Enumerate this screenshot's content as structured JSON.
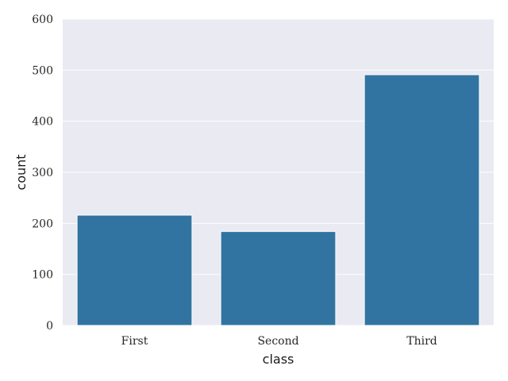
{
  "chart_data": {
    "type": "bar",
    "categories": [
      "First",
      "Second",
      "Third"
    ],
    "values": [
      216,
      184,
      491
    ],
    "title": "",
    "xlabel": "class",
    "ylabel": "count",
    "ylim": [
      0,
      600
    ],
    "yticks": [
      0,
      100,
      200,
      300,
      400,
      500,
      600
    ],
    "grid": true,
    "legend": "none",
    "colors": {
      "bar": "#3274a1",
      "plot_background": "#eaeaf2",
      "grid": "#ffffff",
      "text": "#262626"
    }
  }
}
